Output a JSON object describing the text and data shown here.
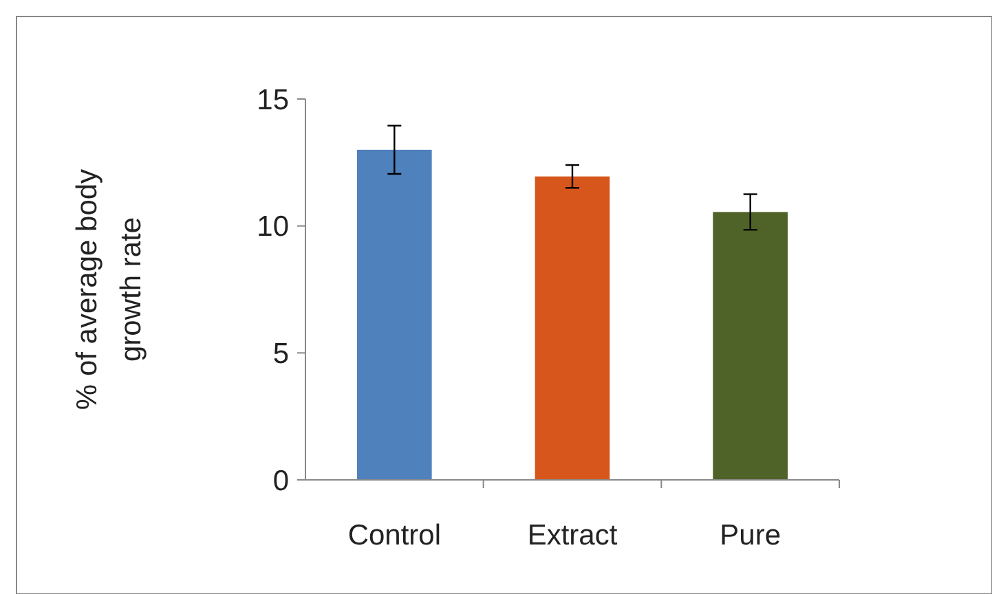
{
  "chart_data": {
    "type": "bar",
    "ylabel": "% of average body growth rate",
    "categories": [
      "Control",
      "Extract",
      "Pure"
    ],
    "values": [
      13.0,
      11.95,
      10.55
    ],
    "colors": [
      "#4f81bd",
      "#d6561c",
      "#4f6228"
    ],
    "errors": [
      0.95,
      0.45,
      0.7
    ],
    "ylim": [
      0,
      15
    ],
    "yticks": [
      0,
      5,
      10,
      15
    ],
    "grid": false
  }
}
